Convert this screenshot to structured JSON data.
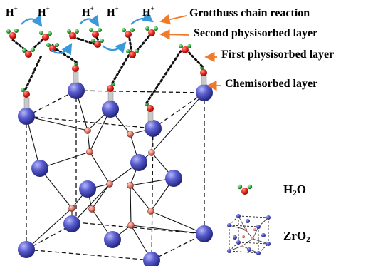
{
  "protons": [
    "H",
    "H",
    "H",
    "H",
    "H"
  ],
  "proton_superscript": "+",
  "layer_labels": {
    "grotthuss": "Grotthuss chain reaction",
    "second": "Second physisorbed layer",
    "first": "First physisorbed layer",
    "chemisorbed": "Chemisorbed layer"
  },
  "legend": {
    "water_main": "H",
    "water_sub": "2",
    "water_tail": "O",
    "zro2_main": "ZrO",
    "zro2_sub": "2"
  },
  "colors": {
    "zr_atom": "#4b4fc4",
    "o_atom": "#e07a6a",
    "water_oxygen": "#e8261d",
    "water_hydrogen": "#2fae3a",
    "arrow_orange": "#f07a2a",
    "grotthuss_arrow": "#3a9ad9"
  }
}
